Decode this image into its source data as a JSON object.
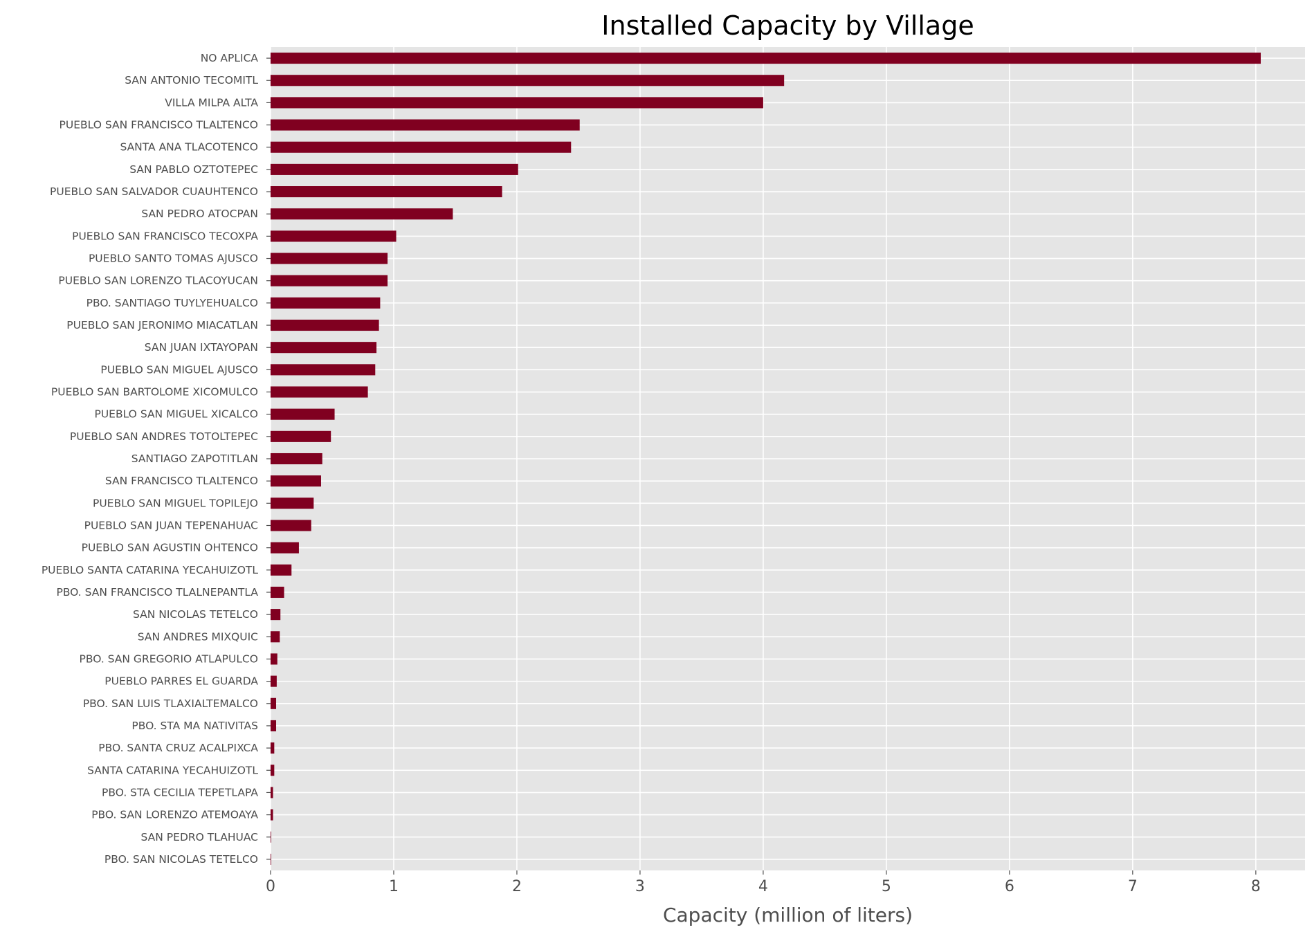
{
  "chart_data": {
    "type": "bar",
    "orientation": "horizontal",
    "title": "Installed Capacity by Village",
    "xlabel": "Capacity (million of liters)",
    "ylabel": "",
    "xlim": [
      0,
      8.4
    ],
    "xticks": [
      0,
      1,
      2,
      3,
      4,
      5,
      6,
      7,
      8
    ],
    "grid": true,
    "legend": "none",
    "colors": {
      "bar": "#800020",
      "plot_background": "#E5E5E5",
      "grid": "#FFFFFF",
      "tick_label": "#4D4D4D",
      "title": "#000000"
    },
    "categories": [
      "NO APLICA",
      "SAN ANTONIO TECOMITL",
      "VILLA MILPA ALTA",
      "PUEBLO SAN FRANCISCO TLALTENCO",
      "SANTA ANA TLACOTENCO",
      "SAN PABLO OZTOTEPEC",
      "PUEBLO SAN SALVADOR CUAUHTENCO",
      "SAN PEDRO ATOCPAN",
      "PUEBLO SAN FRANCISCO TECOXPA",
      "PUEBLO SANTO TOMAS AJUSCO",
      "PUEBLO SAN LORENZO TLACOYUCAN",
      "PBO. SANTIAGO TUYLYEHUALCO",
      "PUEBLO SAN JERONIMO MIACATLAN",
      "SAN JUAN IXTAYOPAN",
      "PUEBLO SAN MIGUEL AJUSCO",
      "PUEBLO SAN BARTOLOME XICOMULCO",
      "PUEBLO SAN MIGUEL XICALCO",
      "PUEBLO SAN ANDRES TOTOLTEPEC",
      "SANTIAGO ZAPOTITLAN",
      "SAN FRANCISCO TLALTENCO",
      "PUEBLO SAN MIGUEL TOPILEJO",
      "PUEBLO SAN JUAN TEPENAHUAC",
      "PUEBLO SAN AGUSTIN OHTENCO",
      "PUEBLO SANTA CATARINA YECAHUIZOTL",
      "PBO. SAN FRANCISCO TLALNEPANTLA",
      "SAN NICOLAS TETELCO",
      "SAN ANDRES MIXQUIC",
      "PBO. SAN GREGORIO ATLAPULCO",
      "PUEBLO PARRES EL GUARDA",
      "PBO. SAN LUIS TLAXIALTEMALCO",
      "PBO. STA MA NATIVITAS",
      "PBO. SANTA CRUZ ACALPIXCA",
      "SANTA CATARINA YECAHUIZOTL",
      "PBO. STA CECILIA TEPETLAPA",
      "PBO. SAN LORENZO ATEMOAYA",
      "SAN PEDRO TLAHUAC",
      "PBO. SAN NICOLAS TETELCO"
    ],
    "values": [
      8.04,
      4.17,
      4.0,
      2.51,
      2.44,
      2.01,
      1.88,
      1.48,
      1.02,
      0.95,
      0.95,
      0.89,
      0.88,
      0.86,
      0.85,
      0.79,
      0.52,
      0.49,
      0.42,
      0.41,
      0.35,
      0.33,
      0.23,
      0.17,
      0.11,
      0.08,
      0.075,
      0.055,
      0.05,
      0.045,
      0.045,
      0.03,
      0.03,
      0.02,
      0.02,
      0.005,
      0.005
    ]
  }
}
